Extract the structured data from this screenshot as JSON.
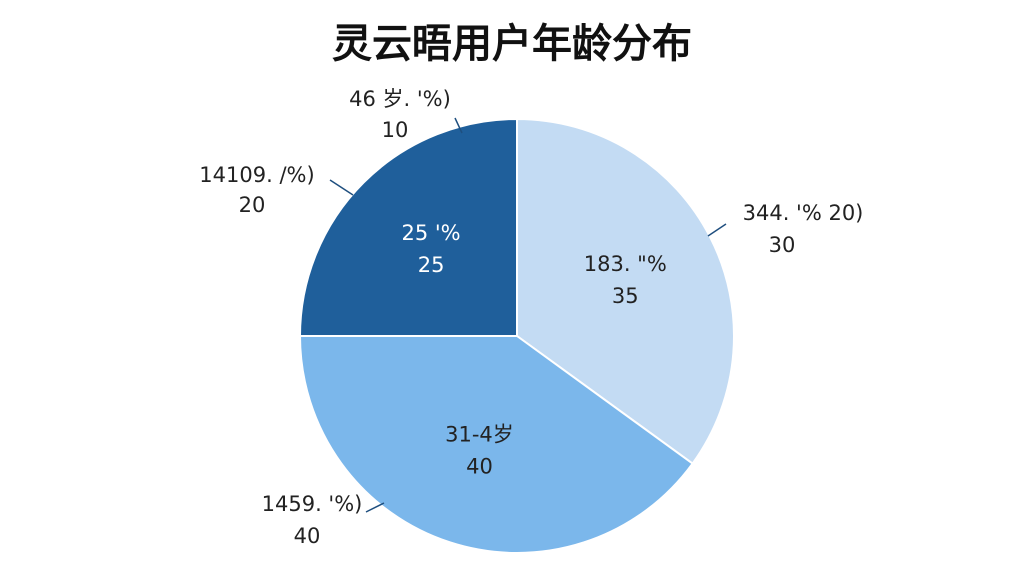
{
  "chart_data": {
    "type": "pie",
    "title": "灵云晤用户年龄分布",
    "categories": [
      "183. \"%",
      "31-4岁",
      "25 '%"
    ],
    "values": [
      35,
      40,
      25
    ],
    "colors": [
      "#c3dbf3",
      "#7bb7eb",
      "#1f5f9b"
    ],
    "annotations": [
      {
        "label": "46 岁. '%)",
        "value": 10
      },
      {
        "label": "14109. /%)",
        "value": 20
      },
      {
        "label": "344. '% 20)",
        "value": 30
      },
      {
        "label": "1459. '%)",
        "value": 40
      }
    ]
  }
}
